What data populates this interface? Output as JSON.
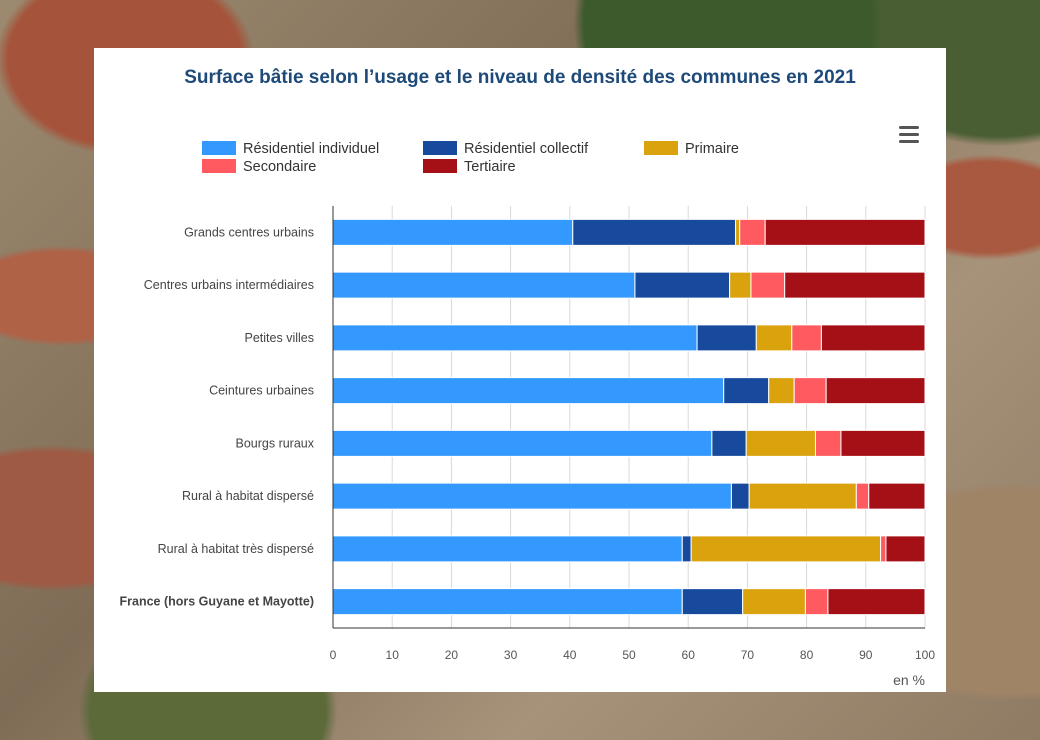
{
  "chart_data": {
    "type": "bar",
    "orientation": "horizontal",
    "stacked": true,
    "title": "Surface bâtie selon l’usage et le niveau de densité des communes en 2021",
    "unit_label": "en %",
    "xlim": [
      0,
      100
    ],
    "x_ticks": [
      "0",
      "10",
      "20",
      "30",
      "40",
      "50",
      "60",
      "70",
      "80",
      "90",
      "100"
    ],
    "grid": true,
    "legend_position": "top",
    "categories": [
      "Grands centres urbains",
      "Centres urbains intermédiaires",
      "Petites villes",
      "Ceintures urbaines",
      "Bourgs ruraux",
      "Rural à habitat dispersé",
      "Rural à habitat très dispersé",
      "France (hors Guyane et Mayotte)"
    ],
    "bold_categories": [
      7
    ],
    "series": [
      {
        "name": "Résidentiel individuel",
        "color": "#3399ff",
        "values": [
          40.5,
          51,
          61.5,
          66,
          64,
          67.3,
          59,
          59
        ]
      },
      {
        "name": "Résidentiel collectif",
        "color": "#174a9c",
        "values": [
          27.5,
          16,
          10,
          7.6,
          5.8,
          3,
          1.5,
          10.2
        ]
      },
      {
        "name": "Primaire",
        "color": "#daa20d",
        "values": [
          0.7,
          3.6,
          6,
          4.3,
          11.7,
          18.1,
          32,
          10.6
        ]
      },
      {
        "name": "Secondaire",
        "color": "#ff5a5f",
        "values": [
          4.3,
          5.7,
          5,
          5.4,
          4.3,
          2.1,
          0.9,
          3.8
        ]
      },
      {
        "name": "Tertiaire",
        "color": "#a50f16",
        "values": [
          27,
          23.7,
          17.5,
          16.7,
          14.2,
          9.5,
          6.6,
          16.4
        ]
      }
    ]
  }
}
